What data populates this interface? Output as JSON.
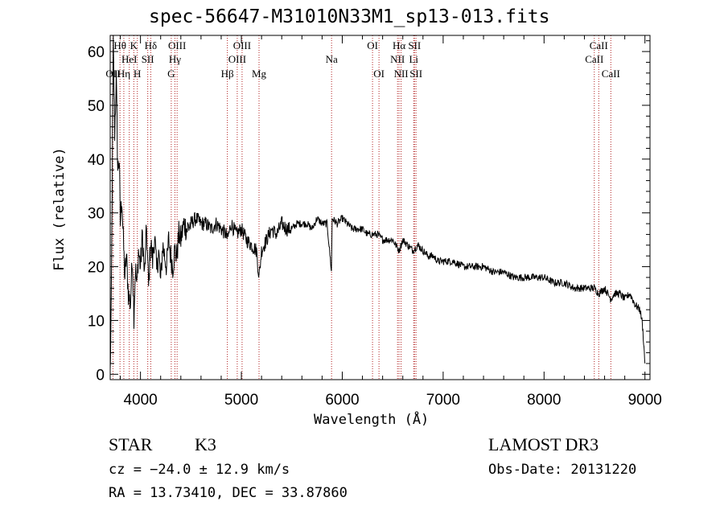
{
  "chart_data": {
    "type": "line",
    "title": "spec-56647-M31010N33M1_sp13-013.fits",
    "xlabel": "Wavelength (Å)",
    "ylabel": "Flux (relative)",
    "xlim": [
      3700,
      9050
    ],
    "ylim": [
      -1,
      63
    ],
    "xticks": [
      4000,
      5000,
      6000,
      7000,
      8000,
      9000
    ],
    "yticks": [
      0,
      10,
      20,
      30,
      40,
      50,
      60
    ],
    "series": [
      {
        "name": "flux",
        "x": [
          3700,
          3710,
          3720,
          3730,
          3745,
          3760,
          3775,
          3790,
          3800,
          3815,
          3830,
          3845,
          3860,
          3880,
          3900,
          3920,
          3935,
          3950,
          3965,
          3980,
          4000,
          4020,
          4040,
          4060,
          4080,
          4100,
          4120,
          4140,
          4160,
          4180,
          4200,
          4220,
          4240,
          4260,
          4280,
          4300,
          4320,
          4340,
          4360,
          4380,
          4400,
          4430,
          4460,
          4500,
          4550,
          4600,
          4650,
          4700,
          4750,
          4800,
          4850,
          4861,
          4900,
          4950,
          5000,
          5050,
          5100,
          5150,
          5175,
          5200,
          5250,
          5300,
          5350,
          5400,
          5450,
          5500,
          5550,
          5600,
          5650,
          5700,
          5750,
          5800,
          5850,
          5893,
          5900,
          5950,
          6000,
          6050,
          6100,
          6150,
          6200,
          6250,
          6300,
          6350,
          6400,
          6450,
          6500,
          6563,
          6600,
          6650,
          6700,
          6750,
          6800,
          6850,
          6900,
          6950,
          7000,
          7100,
          7200,
          7300,
          7400,
          7500,
          7600,
          7700,
          7800,
          7900,
          8000,
          8100,
          8200,
          8300,
          8400,
          8500,
          8542,
          8600,
          8662,
          8700,
          8750,
          8800,
          8850,
          8900,
          8950,
          8970,
          8980,
          8990,
          9000
        ],
        "y": [
          0,
          12,
          35,
          62,
          45,
          55,
          38,
          40,
          28,
          33,
          25,
          18,
          22,
          15,
          13,
          22,
          11,
          20,
          16,
          23,
          20,
          26,
          18,
          27,
          16,
          25,
          21,
          26,
          19,
          23,
          17,
          24,
          22,
          20,
          25,
          22,
          20,
          23,
          22,
          26,
          25,
          28,
          27,
          28,
          29,
          28,
          28,
          27,
          28,
          27,
          26,
          25,
          28,
          26,
          27,
          25,
          24,
          23,
          18,
          23,
          25,
          27,
          26,
          28,
          27,
          27,
          28,
          28,
          28,
          27,
          29,
          28,
          28,
          19,
          29,
          28,
          29,
          28,
          27,
          27,
          27,
          26,
          26,
          26,
          25,
          25,
          25,
          23,
          25,
          24,
          23,
          24,
          23,
          22,
          22,
          21,
          21,
          21,
          20,
          20,
          20,
          19,
          19,
          18,
          18,
          18,
          18,
          17,
          17,
          16,
          16,
          16,
          15,
          16,
          14,
          15,
          15,
          14,
          15,
          13,
          12,
          10,
          8,
          5,
          2
        ]
      }
    ],
    "lines": [
      {
        "name": "OII",
        "x": 3727,
        "row": 3
      },
      {
        "name": "Hθ",
        "x": 3797,
        "row": 1
      },
      {
        "name": "Hη",
        "x": 3835,
        "row": 3
      },
      {
        "name": "HeI",
        "x": 3889,
        "row": 2
      },
      {
        "name": "K",
        "x": 3934,
        "row": 1
      },
      {
        "name": "H",
        "x": 3969,
        "row": 3
      },
      {
        "name": "SII",
        "x": 4072,
        "row": 2
      },
      {
        "name": "Hδ",
        "x": 4102,
        "row": 1
      },
      {
        "name": "G",
        "x": 4305,
        "row": 3
      },
      {
        "name": "Hγ",
        "x": 4341,
        "row": 2
      },
      {
        "name": "OIII",
        "x": 4363,
        "row": 1
      },
      {
        "name": "Hβ",
        "x": 4861,
        "row": 3
      },
      {
        "name": "OIII",
        "x": 4959,
        "row": 2
      },
      {
        "name": "OIII",
        "x": 5007,
        "row": 1
      },
      {
        "name": "Mg",
        "x": 5175,
        "row": 3
      },
      {
        "name": "Na",
        "x": 5894,
        "row": 2
      },
      {
        "name": "OI",
        "x": 6300,
        "row": 1
      },
      {
        "name": "OI",
        "x": 6364,
        "row": 3
      },
      {
        "name": "NII",
        "x": 6548,
        "row": 2
      },
      {
        "name": "Hα",
        "x": 6563,
        "row": 1
      },
      {
        "name": "NII",
        "x": 6583,
        "row": 3
      },
      {
        "name": "SII",
        "x": 6716,
        "row": 1
      },
      {
        "name": "Li",
        "x": 6708,
        "row": 2
      },
      {
        "name": "SII",
        "x": 6731,
        "row": 3
      },
      {
        "name": "CaII",
        "x": 8498,
        "row": 2
      },
      {
        "name": "CaII",
        "x": 8542,
        "row": 1
      },
      {
        "name": "CaII",
        "x": 8662,
        "row": 3
      }
    ]
  },
  "info": {
    "class_label": "STAR",
    "subclass": "K3",
    "survey": "LAMOST DR3",
    "cz": "cz = −24.0 ± 12.9 km/s",
    "obs_date": "Obs-Date: 20131220",
    "coords": "RA =  13.73410, DEC =  33.87860"
  },
  "colors": {
    "axes": "#000000",
    "spectrum": "#000000",
    "line_marker": "#b22222"
  }
}
